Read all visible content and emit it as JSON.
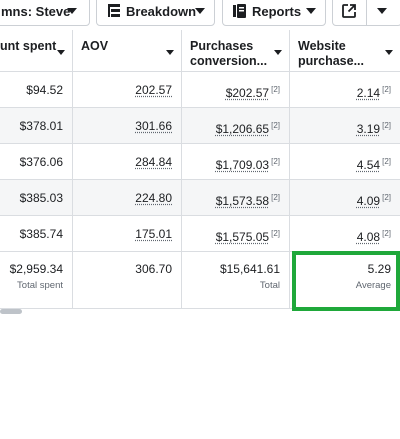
{
  "toolbar": {
    "columns_label": "mns: Steve",
    "breakdown_label": "Breakdown",
    "reports_label": "Reports"
  },
  "headers": {
    "amount_spent": "unt spent",
    "aov": "AOV",
    "purchases_line1": "Purchases",
    "purchases_line2": "conversion...",
    "website_line1": "Website",
    "website_line2": "purchase..."
  },
  "rows": [
    {
      "spent": "$94.52",
      "aov": "202.57",
      "purchases": "$202.57",
      "website": "2.14"
    },
    {
      "spent": "$378.01",
      "aov": "301.66",
      "purchases": "$1,206.65",
      "website": "3.19"
    },
    {
      "spent": "$376.06",
      "aov": "284.84",
      "purchases": "$1,709.03",
      "website": "4.54"
    },
    {
      "spent": "$385.03",
      "aov": "224.80",
      "purchases": "$1,573.58",
      "website": "4.09"
    },
    {
      "spent": "$385.74",
      "aov": "175.01",
      "purchases": "$1,575.05",
      "website": "4.08"
    }
  ],
  "footnote": "[2]",
  "totals": {
    "spent": "$2,959.34",
    "spent_label": "Total spent",
    "aov": "306.70",
    "purchases": "$15,641.61",
    "purchases_label": "Total",
    "website": "5.29",
    "website_label": "Average"
  },
  "colors": {
    "highlight": "#1fa83a",
    "border": "#dadde1",
    "alt_row": "#f5f6f7"
  }
}
